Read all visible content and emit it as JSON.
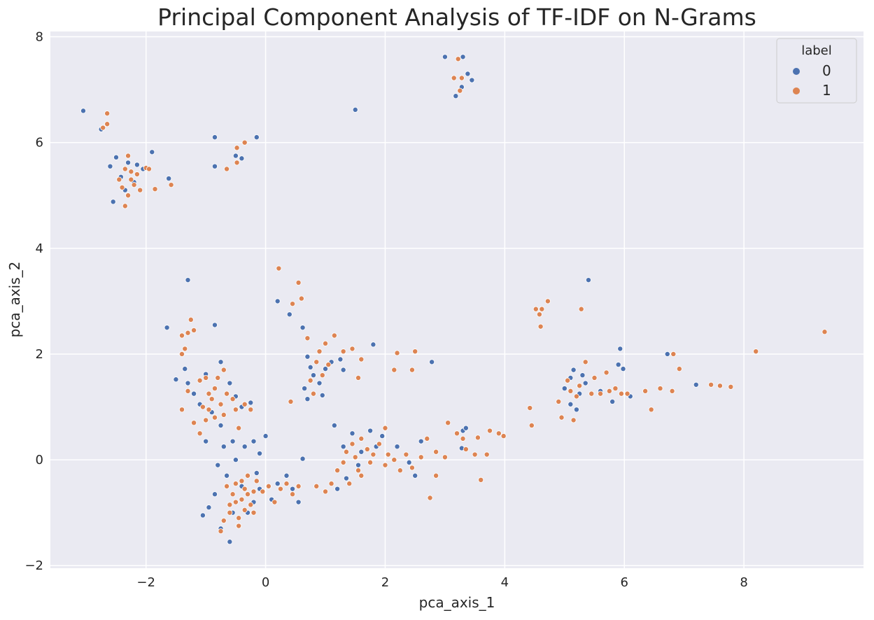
{
  "chart_data": {
    "type": "scatter",
    "title": "Principal Component Analysis of TF-IDF on N-Grams",
    "xlabel": "pca_axis_1",
    "ylabel": "pca_axis_2",
    "xlim": [
      -3.6,
      10.0
    ],
    "ylim": [
      -2.05,
      8.1
    ],
    "xticks": [
      -2,
      0,
      2,
      4,
      6,
      8
    ],
    "yticks": [
      -2,
      0,
      2,
      4,
      6,
      8
    ],
    "xtick_labels": [
      "−2",
      "0",
      "2",
      "4",
      "6",
      "8"
    ],
    "ytick_labels": [
      "−2",
      "0",
      "2",
      "4",
      "6",
      "8"
    ],
    "grid": true,
    "legend": {
      "title": "label",
      "placement": "top-right",
      "entries": [
        "0",
        "1"
      ]
    },
    "colors": {
      "background": "#eaeaf2",
      "grid": "#ffffff",
      "label_0": "#4c72b0",
      "label_1": "#dd8452"
    },
    "series": [
      {
        "name": "0",
        "points": [
          [
            -3.05,
            6.6
          ],
          [
            -2.75,
            6.25
          ],
          [
            -2.6,
            5.55
          ],
          [
            -2.5,
            5.72
          ],
          [
            -2.42,
            5.35
          ],
          [
            -2.55,
            4.88
          ],
          [
            -2.35,
            5.1
          ],
          [
            -2.15,
            5.58
          ],
          [
            -2.05,
            5.5
          ],
          [
            -1.9,
            5.82
          ],
          [
            -2.2,
            5.25
          ],
          [
            -2.3,
            5.62
          ],
          [
            -1.62,
            5.32
          ],
          [
            -0.85,
            6.1
          ],
          [
            -0.85,
            5.55
          ],
          [
            -0.5,
            5.75
          ],
          [
            -0.15,
            6.1
          ],
          [
            -0.4,
            5.7
          ],
          [
            -1.65,
            2.5
          ],
          [
            -1.3,
            3.4
          ],
          [
            -0.85,
            2.55
          ],
          [
            -1.5,
            1.52
          ],
          [
            -1.35,
            1.72
          ],
          [
            -1.3,
            1.45
          ],
          [
            -1.2,
            1.25
          ],
          [
            -1.0,
            1.62
          ],
          [
            -0.75,
            1.85
          ],
          [
            -0.6,
            1.45
          ],
          [
            -0.5,
            1.2
          ],
          [
            -0.4,
            1.0
          ],
          [
            -0.25,
            1.08
          ],
          [
            -1.0,
            0.35
          ],
          [
            -0.75,
            0.65
          ],
          [
            -1.1,
            1.05
          ],
          [
            -0.9,
            0.9
          ],
          [
            -0.7,
            0.25
          ],
          [
            -0.55,
            0.35
          ],
          [
            -0.35,
            0.25
          ],
          [
            0.0,
            0.45
          ],
          [
            -0.2,
            0.35
          ],
          [
            -0.1,
            0.12
          ],
          [
            -1.05,
            -1.05
          ],
          [
            -0.95,
            -0.9
          ],
          [
            -0.85,
            -0.65
          ],
          [
            -0.75,
            -1.3
          ],
          [
            -0.6,
            -1.55
          ],
          [
            -0.55,
            -1.0
          ],
          [
            -0.45,
            -1.25
          ],
          [
            -0.3,
            -1.0
          ],
          [
            -0.2,
            -0.8
          ],
          [
            -0.1,
            -0.55
          ],
          [
            0.1,
            -0.75
          ],
          [
            0.2,
            -0.45
          ],
          [
            0.35,
            -0.3
          ],
          [
            0.45,
            -0.55
          ],
          [
            0.55,
            -0.8
          ],
          [
            0.62,
            0.02
          ],
          [
            -0.65,
            -0.3
          ],
          [
            -0.4,
            -0.5
          ],
          [
            -0.15,
            -0.25
          ],
          [
            -0.8,
            -0.1
          ],
          [
            -0.5,
            0.0
          ],
          [
            0.2,
            3.0
          ],
          [
            0.4,
            2.75
          ],
          [
            0.62,
            2.5
          ],
          [
            0.7,
            1.95
          ],
          [
            0.75,
            1.75
          ],
          [
            0.8,
            1.6
          ],
          [
            0.9,
            1.45
          ],
          [
            1.0,
            1.72
          ],
          [
            1.1,
            1.85
          ],
          [
            1.25,
            1.9
          ],
          [
            1.3,
            1.7
          ],
          [
            0.95,
            1.22
          ],
          [
            0.65,
            1.35
          ],
          [
            0.7,
            1.15
          ],
          [
            1.5,
            6.62
          ],
          [
            1.15,
            0.65
          ],
          [
            1.3,
            0.25
          ],
          [
            1.45,
            0.5
          ],
          [
            1.6,
            0.15
          ],
          [
            1.75,
            0.55
          ],
          [
            1.85,
            0.25
          ],
          [
            1.95,
            0.45
          ],
          [
            2.2,
            0.25
          ],
          [
            2.4,
            -0.05
          ],
          [
            2.6,
            0.35
          ],
          [
            2.5,
            -0.3
          ],
          [
            1.2,
            -0.55
          ],
          [
            1.35,
            -0.35
          ],
          [
            1.55,
            -0.1
          ],
          [
            1.8,
            2.18
          ],
          [
            2.78,
            1.85
          ],
          [
            3.0,
            7.62
          ],
          [
            3.3,
            7.62
          ],
          [
            3.38,
            7.3
          ],
          [
            3.45,
            7.18
          ],
          [
            3.28,
            7.05
          ],
          [
            3.18,
            6.88
          ],
          [
            3.3,
            0.55
          ],
          [
            3.28,
            0.22
          ],
          [
            3.35,
            0.6
          ],
          [
            5.0,
            1.35
          ],
          [
            5.1,
            1.55
          ],
          [
            5.15,
            1.7
          ],
          [
            5.25,
            1.25
          ],
          [
            5.3,
            1.6
          ],
          [
            5.2,
            0.95
          ],
          [
            5.1,
            1.05
          ],
          [
            5.35,
            1.45
          ],
          [
            5.4,
            3.4
          ],
          [
            5.6,
            1.3
          ],
          [
            5.8,
            1.1
          ],
          [
            5.9,
            1.8
          ],
          [
            5.93,
            2.1
          ],
          [
            5.98,
            1.72
          ],
          [
            6.1,
            1.2
          ],
          [
            6.6,
            1.35
          ],
          [
            6.72,
            2.0
          ],
          [
            7.2,
            1.42
          ]
        ]
      },
      {
        "name": "1",
        "points": [
          [
            -2.65,
            6.55
          ],
          [
            -2.72,
            6.28
          ],
          [
            -2.65,
            6.35
          ],
          [
            -2.3,
            5.75
          ],
          [
            -2.35,
            5.5
          ],
          [
            -2.25,
            5.3
          ],
          [
            -2.2,
            5.2
          ],
          [
            -2.3,
            5.0
          ],
          [
            -2.35,
            4.8
          ],
          [
            -2.1,
            5.1
          ],
          [
            -2.15,
            5.4
          ],
          [
            -2.0,
            5.52
          ],
          [
            -1.95,
            5.5
          ],
          [
            -1.85,
            5.12
          ],
          [
            -1.58,
            5.2
          ],
          [
            -2.45,
            5.3
          ],
          [
            -2.25,
            5.45
          ],
          [
            -2.4,
            5.15
          ],
          [
            -0.65,
            5.5
          ],
          [
            -0.48,
            5.62
          ],
          [
            -0.48,
            5.9
          ],
          [
            -0.35,
            6.0
          ],
          [
            -1.4,
            2.35
          ],
          [
            -1.3,
            2.4
          ],
          [
            -1.25,
            2.65
          ],
          [
            -1.2,
            2.45
          ],
          [
            -1.35,
            2.1
          ],
          [
            -1.4,
            2.0
          ],
          [
            -1.4,
            0.95
          ],
          [
            -1.3,
            1.3
          ],
          [
            -1.2,
            0.7
          ],
          [
            -1.1,
            0.5
          ],
          [
            -1.0,
            0.75
          ],
          [
            -0.95,
            0.95
          ],
          [
            -0.9,
            1.15
          ],
          [
            -0.85,
            1.35
          ],
          [
            -0.8,
            1.55
          ],
          [
            -0.7,
            1.7
          ],
          [
            -0.75,
            1.05
          ],
          [
            -0.7,
            0.85
          ],
          [
            -0.65,
            1.25
          ],
          [
            -0.55,
            1.15
          ],
          [
            -0.5,
            0.95
          ],
          [
            -0.45,
            0.6
          ],
          [
            -0.35,
            1.05
          ],
          [
            -0.25,
            0.95
          ],
          [
            -1.05,
            1.0
          ],
          [
            -0.95,
            1.25
          ],
          [
            -0.85,
            0.8
          ],
          [
            -1.1,
            1.5
          ],
          [
            -1.0,
            1.55
          ],
          [
            -0.75,
            -1.35
          ],
          [
            -0.7,
            -1.15
          ],
          [
            -0.6,
            -0.85
          ],
          [
            -0.55,
            -0.65
          ],
          [
            -0.5,
            -0.45
          ],
          [
            -0.45,
            -1.1
          ],
          [
            -0.4,
            -0.75
          ],
          [
            -0.35,
            -0.55
          ],
          [
            -0.3,
            -0.3
          ],
          [
            -0.25,
            -0.85
          ],
          [
            -0.2,
            -0.6
          ],
          [
            -0.15,
            -0.4
          ],
          [
            -0.05,
            -0.6
          ],
          [
            0.05,
            -0.5
          ],
          [
            0.15,
            -0.8
          ],
          [
            0.25,
            -0.55
          ],
          [
            0.35,
            -0.45
          ],
          [
            0.45,
            -0.65
          ],
          [
            0.55,
            -0.5
          ],
          [
            -0.65,
            -0.5
          ],
          [
            -0.6,
            -1.0
          ],
          [
            -0.5,
            -0.8
          ],
          [
            -0.4,
            -0.4
          ],
          [
            -0.3,
            -0.65
          ],
          [
            -0.2,
            -1.0
          ],
          [
            -0.45,
            -1.25
          ],
          [
            -0.35,
            -0.95
          ],
          [
            0.22,
            3.62
          ],
          [
            0.45,
            2.95
          ],
          [
            0.55,
            3.35
          ],
          [
            0.6,
            3.05
          ],
          [
            0.7,
            2.3
          ],
          [
            0.75,
            1.5
          ],
          [
            0.85,
            1.85
          ],
          [
            0.9,
            2.05
          ],
          [
            0.95,
            1.6
          ],
          [
            1.0,
            2.2
          ],
          [
            1.05,
            1.8
          ],
          [
            1.15,
            2.35
          ],
          [
            1.3,
            2.05
          ],
          [
            1.45,
            2.1
          ],
          [
            0.42,
            1.1
          ],
          [
            0.8,
            1.25
          ],
          [
            0.85,
            -0.5
          ],
          [
            1.0,
            -0.6
          ],
          [
            1.1,
            -0.45
          ],
          [
            1.2,
            -0.2
          ],
          [
            1.3,
            -0.05
          ],
          [
            1.35,
            0.15
          ],
          [
            1.45,
            0.3
          ],
          [
            1.5,
            0.05
          ],
          [
            1.55,
            -0.2
          ],
          [
            1.6,
            0.4
          ],
          [
            1.7,
            0.2
          ],
          [
            1.8,
            0.1
          ],
          [
            1.9,
            0.3
          ],
          [
            2.0,
            -0.1
          ],
          [
            2.05,
            0.1
          ],
          [
            2.15,
            0.0
          ],
          [
            2.25,
            -0.2
          ],
          [
            2.35,
            0.1
          ],
          [
            2.45,
            -0.15
          ],
          [
            2.6,
            0.05
          ],
          [
            2.7,
            0.4
          ],
          [
            2.85,
            0.15
          ],
          [
            3.0,
            0.05
          ],
          [
            1.4,
            -0.45
          ],
          [
            1.6,
            -0.3
          ],
          [
            1.75,
            -0.05
          ],
          [
            2.75,
            -0.72
          ],
          [
            2.85,
            -0.3
          ],
          [
            1.55,
            1.55
          ],
          [
            1.6,
            1.9
          ],
          [
            2.2,
            2.02
          ],
          [
            2.45,
            1.7
          ],
          [
            2.5,
            2.05
          ],
          [
            2.15,
            1.7
          ],
          [
            2.0,
            0.6
          ],
          [
            3.05,
            0.7
          ],
          [
            3.2,
            0.5
          ],
          [
            3.3,
            0.4
          ],
          [
            3.35,
            0.2
          ],
          [
            3.5,
            0.1
          ],
          [
            3.55,
            0.42
          ],
          [
            3.6,
            -0.38
          ],
          [
            3.7,
            0.1
          ],
          [
            3.75,
            0.55
          ],
          [
            3.9,
            0.5
          ],
          [
            3.98,
            0.45
          ],
          [
            3.15,
            7.22
          ],
          [
            3.22,
            7.58
          ],
          [
            3.28,
            7.22
          ],
          [
            3.25,
            6.98
          ],
          [
            4.42,
            0.98
          ],
          [
            4.45,
            0.65
          ],
          [
            4.52,
            2.85
          ],
          [
            4.58,
            2.75
          ],
          [
            4.6,
            2.52
          ],
          [
            4.62,
            2.85
          ],
          [
            4.72,
            3.0
          ],
          [
            5.28,
            2.85
          ],
          [
            4.9,
            1.1
          ],
          [
            4.95,
            0.8
          ],
          [
            5.05,
            1.5
          ],
          [
            5.1,
            1.3
          ],
          [
            5.15,
            0.75
          ],
          [
            5.2,
            1.2
          ],
          [
            5.25,
            1.4
          ],
          [
            5.35,
            1.85
          ],
          [
            5.45,
            1.25
          ],
          [
            5.5,
            1.55
          ],
          [
            5.6,
            1.25
          ],
          [
            5.7,
            1.65
          ],
          [
            5.75,
            1.3
          ],
          [
            5.85,
            1.35
          ],
          [
            5.95,
            1.25
          ],
          [
            6.05,
            1.25
          ],
          [
            6.35,
            1.3
          ],
          [
            6.45,
            0.95
          ],
          [
            6.6,
            1.35
          ],
          [
            6.8,
            1.3
          ],
          [
            6.82,
            2.0
          ],
          [
            6.92,
            1.72
          ],
          [
            7.45,
            1.42
          ],
          [
            7.6,
            1.4
          ],
          [
            7.78,
            1.38
          ],
          [
            8.2,
            2.05
          ],
          [
            9.35,
            2.42
          ]
        ]
      }
    ]
  }
}
